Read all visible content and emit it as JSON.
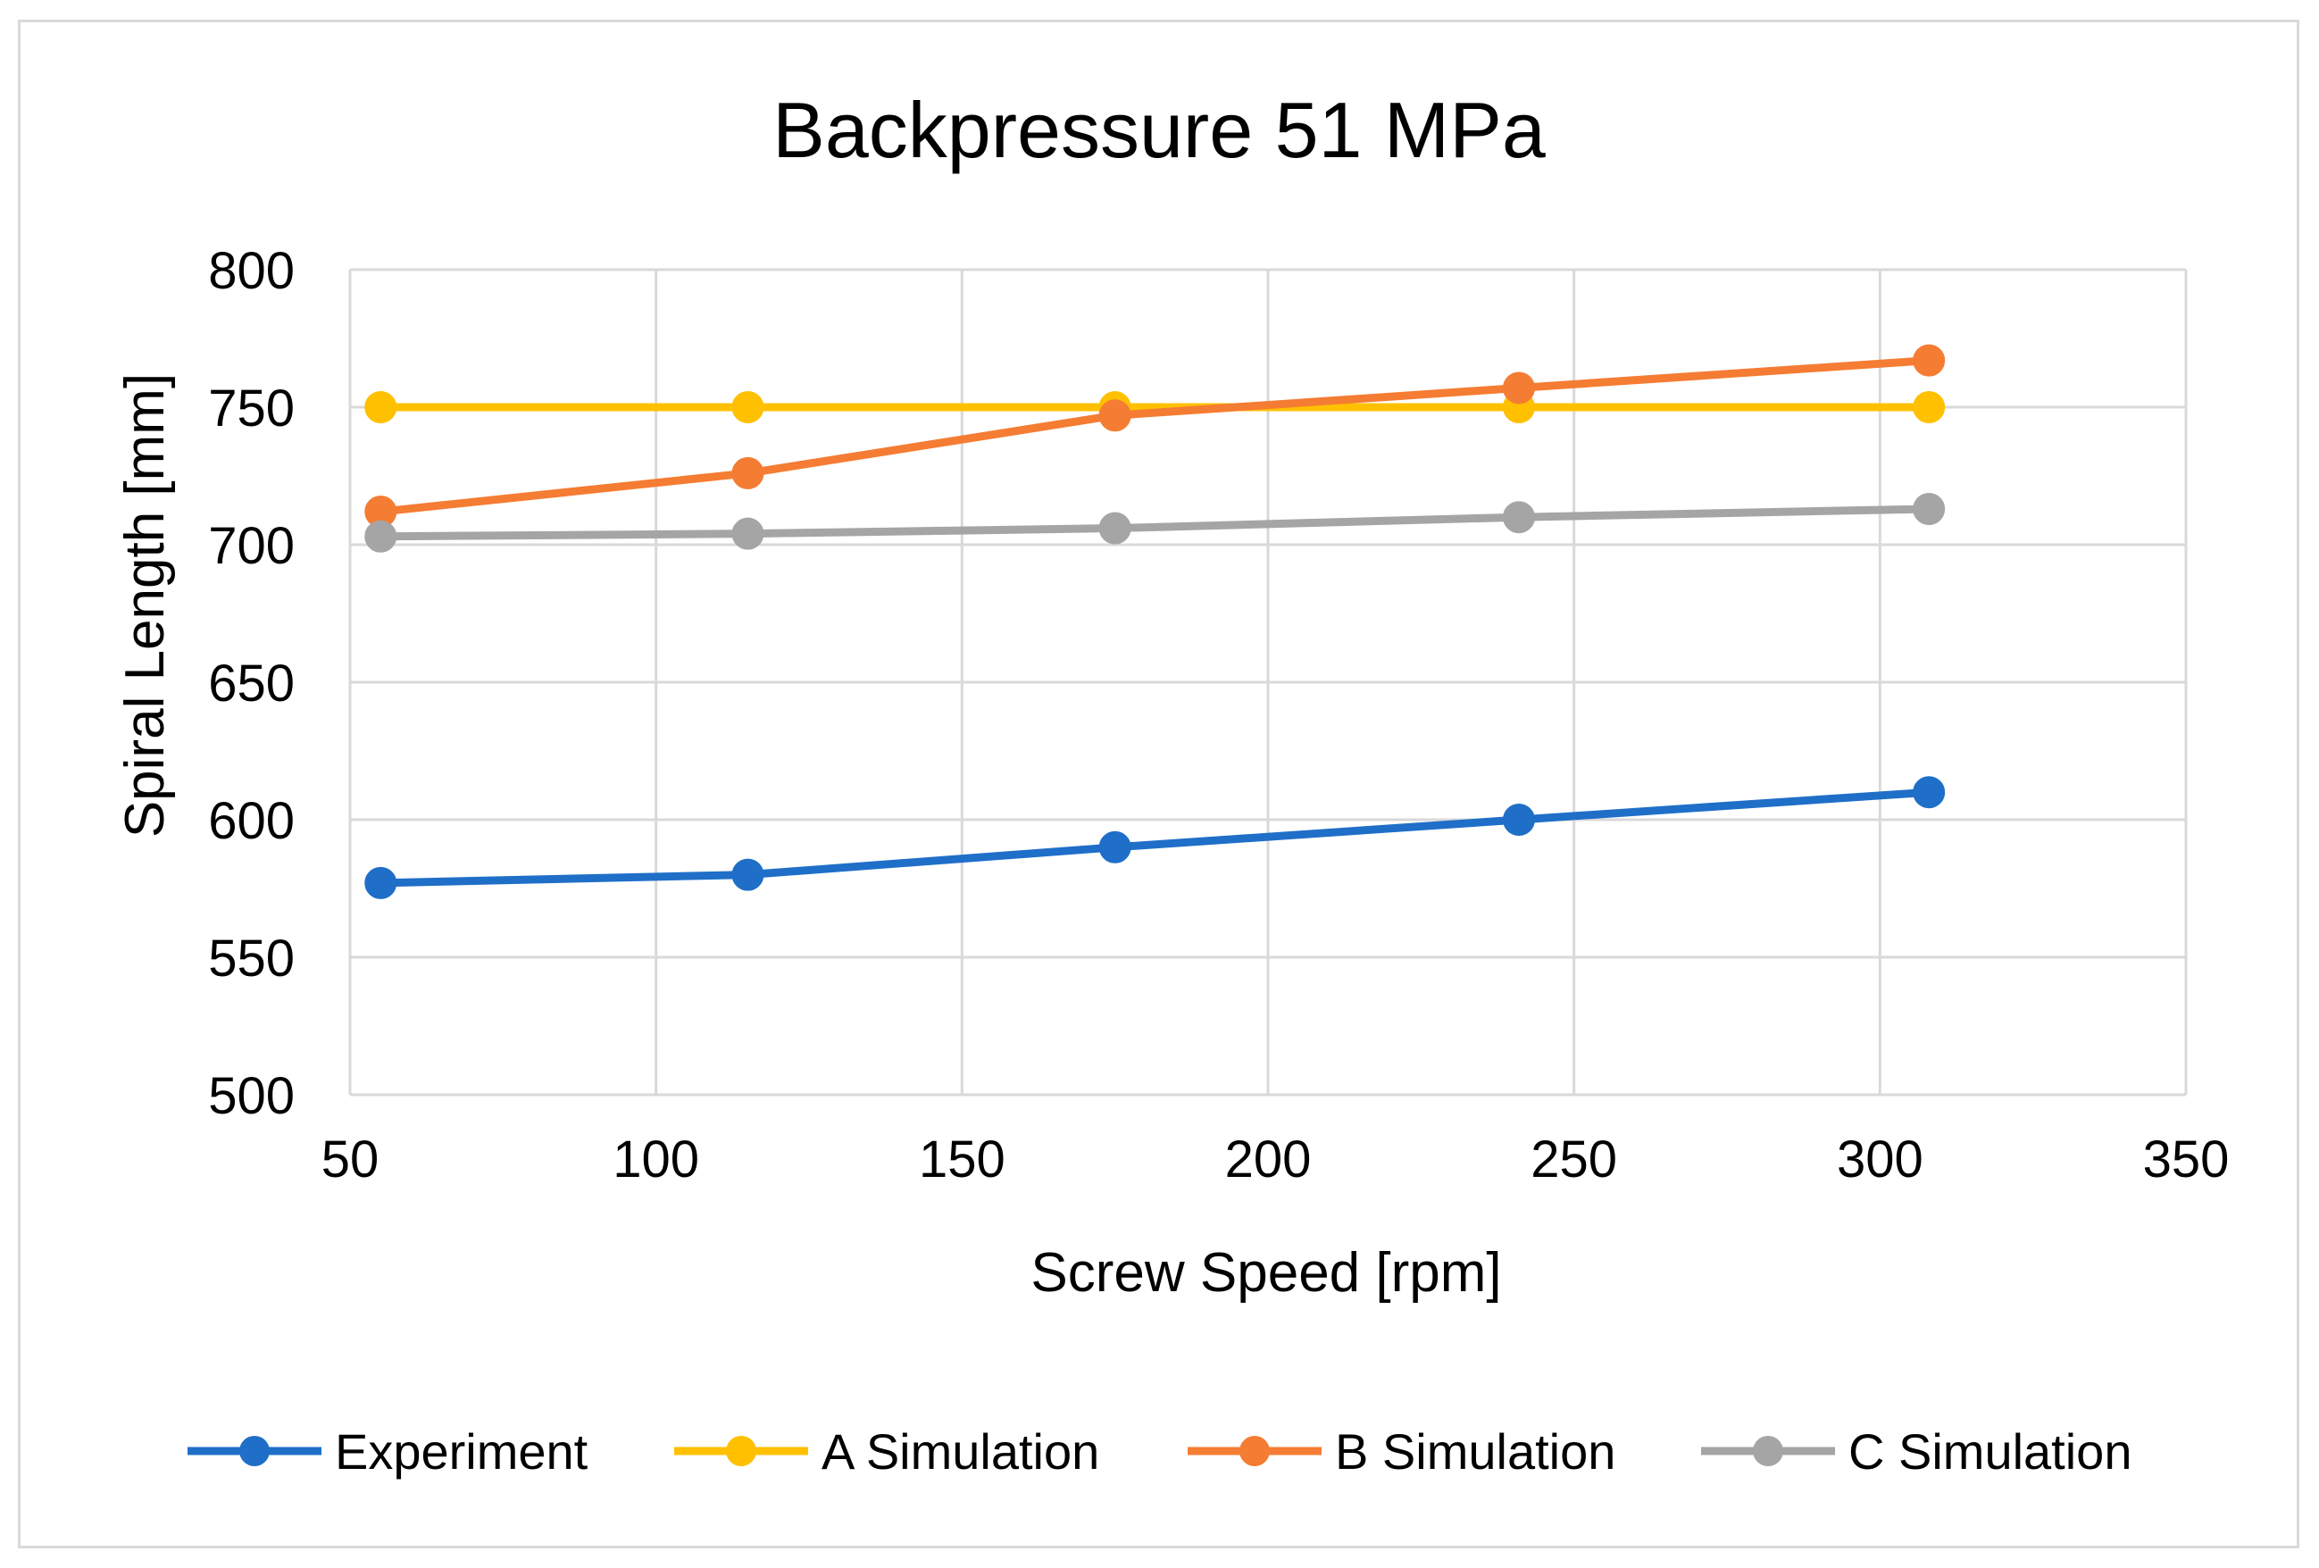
{
  "chart_data": {
    "type": "line",
    "title": "Backpressure 51 MPa",
    "xlabel": "Screw Speed [rpm]",
    "ylabel": "Spiral Length [mm]",
    "xlim": [
      50,
      350
    ],
    "ylim": [
      500,
      800
    ],
    "xticks": [
      50,
      100,
      150,
      200,
      250,
      300,
      350
    ],
    "yticks": [
      500,
      550,
      600,
      650,
      700,
      750,
      800
    ],
    "grid": true,
    "legend_position": "bottom",
    "x": [
      55,
      115,
      175,
      241,
      308
    ],
    "series": [
      {
        "name": "Experiment",
        "color": "#1f6fc8",
        "values": [
          577,
          580,
          590,
          600,
          610
        ]
      },
      {
        "name": "A Simulation",
        "color": "#ffc000",
        "values": [
          750,
          750,
          750,
          750,
          750
        ]
      },
      {
        "name": "B Simulation",
        "color": "#f57c33",
        "values": [
          712,
          726,
          747,
          757,
          767
        ]
      },
      {
        "name": "C Simulation",
        "color": "#a5a5a5",
        "values": [
          703,
          704,
          706,
          710,
          713
        ]
      }
    ]
  }
}
